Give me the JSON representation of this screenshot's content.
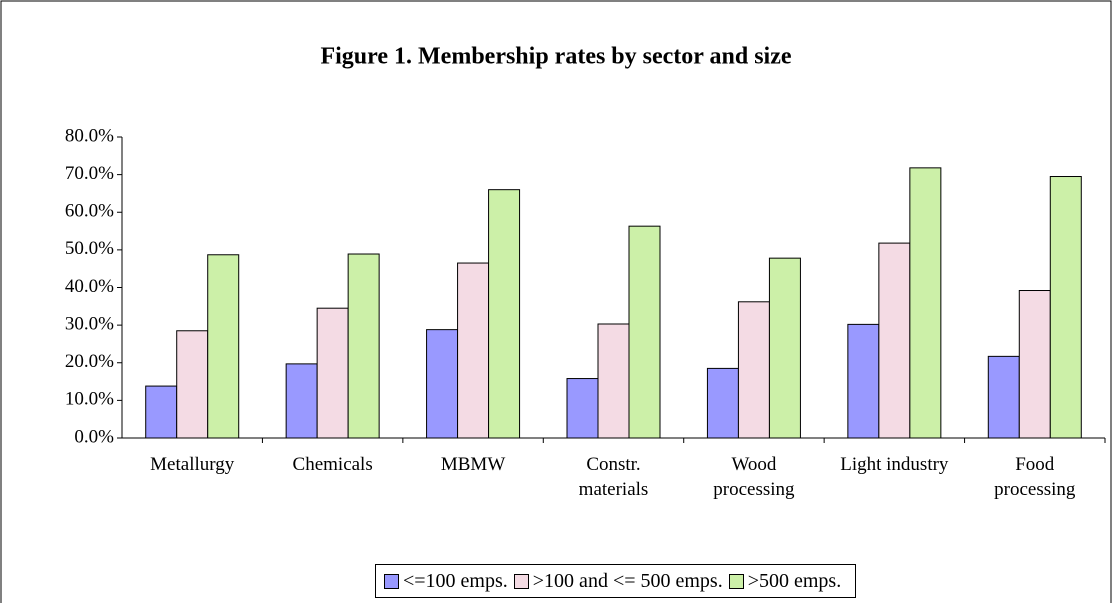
{
  "chart_data": {
    "type": "bar",
    "title": "Figure 1. Membership rates by sector and size",
    "categories": [
      "Metallurgy",
      "Chemicals",
      "MBMW",
      "Constr. materials",
      "Wood processing",
      "Light industry",
      "Food processing"
    ],
    "series": [
      {
        "name": "<=100 emps.",
        "color": "#9999ff",
        "values": [
          13.8,
          19.7,
          28.8,
          15.8,
          18.5,
          30.2,
          21.7
        ]
      },
      {
        "name": ">100 and <= 500 emps.",
        "color": "#f4dbe4",
        "values": [
          28.5,
          34.5,
          46.5,
          30.3,
          36.2,
          51.8,
          39.2
        ]
      },
      {
        "name": ">500 emps.",
        "color": "#ccf0a8",
        "values": [
          48.7,
          48.9,
          66.0,
          56.3,
          47.8,
          71.8,
          69.5
        ]
      }
    ],
    "ylim": [
      0,
      80
    ],
    "yticks": [
      {
        "value": 0,
        "label": "0.0%"
      },
      {
        "value": 10,
        "label": "10.0%"
      },
      {
        "value": 20,
        "label": "20.0%"
      },
      {
        "value": 30,
        "label": "30.0%"
      },
      {
        "value": 40,
        "label": "40.0%"
      },
      {
        "value": 50,
        "label": "50.0%"
      },
      {
        "value": 60,
        "label": "60.0%"
      },
      {
        "value": 70,
        "label": "70.0%"
      },
      {
        "value": 80,
        "label": "80.0%"
      }
    ],
    "legend": "bottom"
  }
}
